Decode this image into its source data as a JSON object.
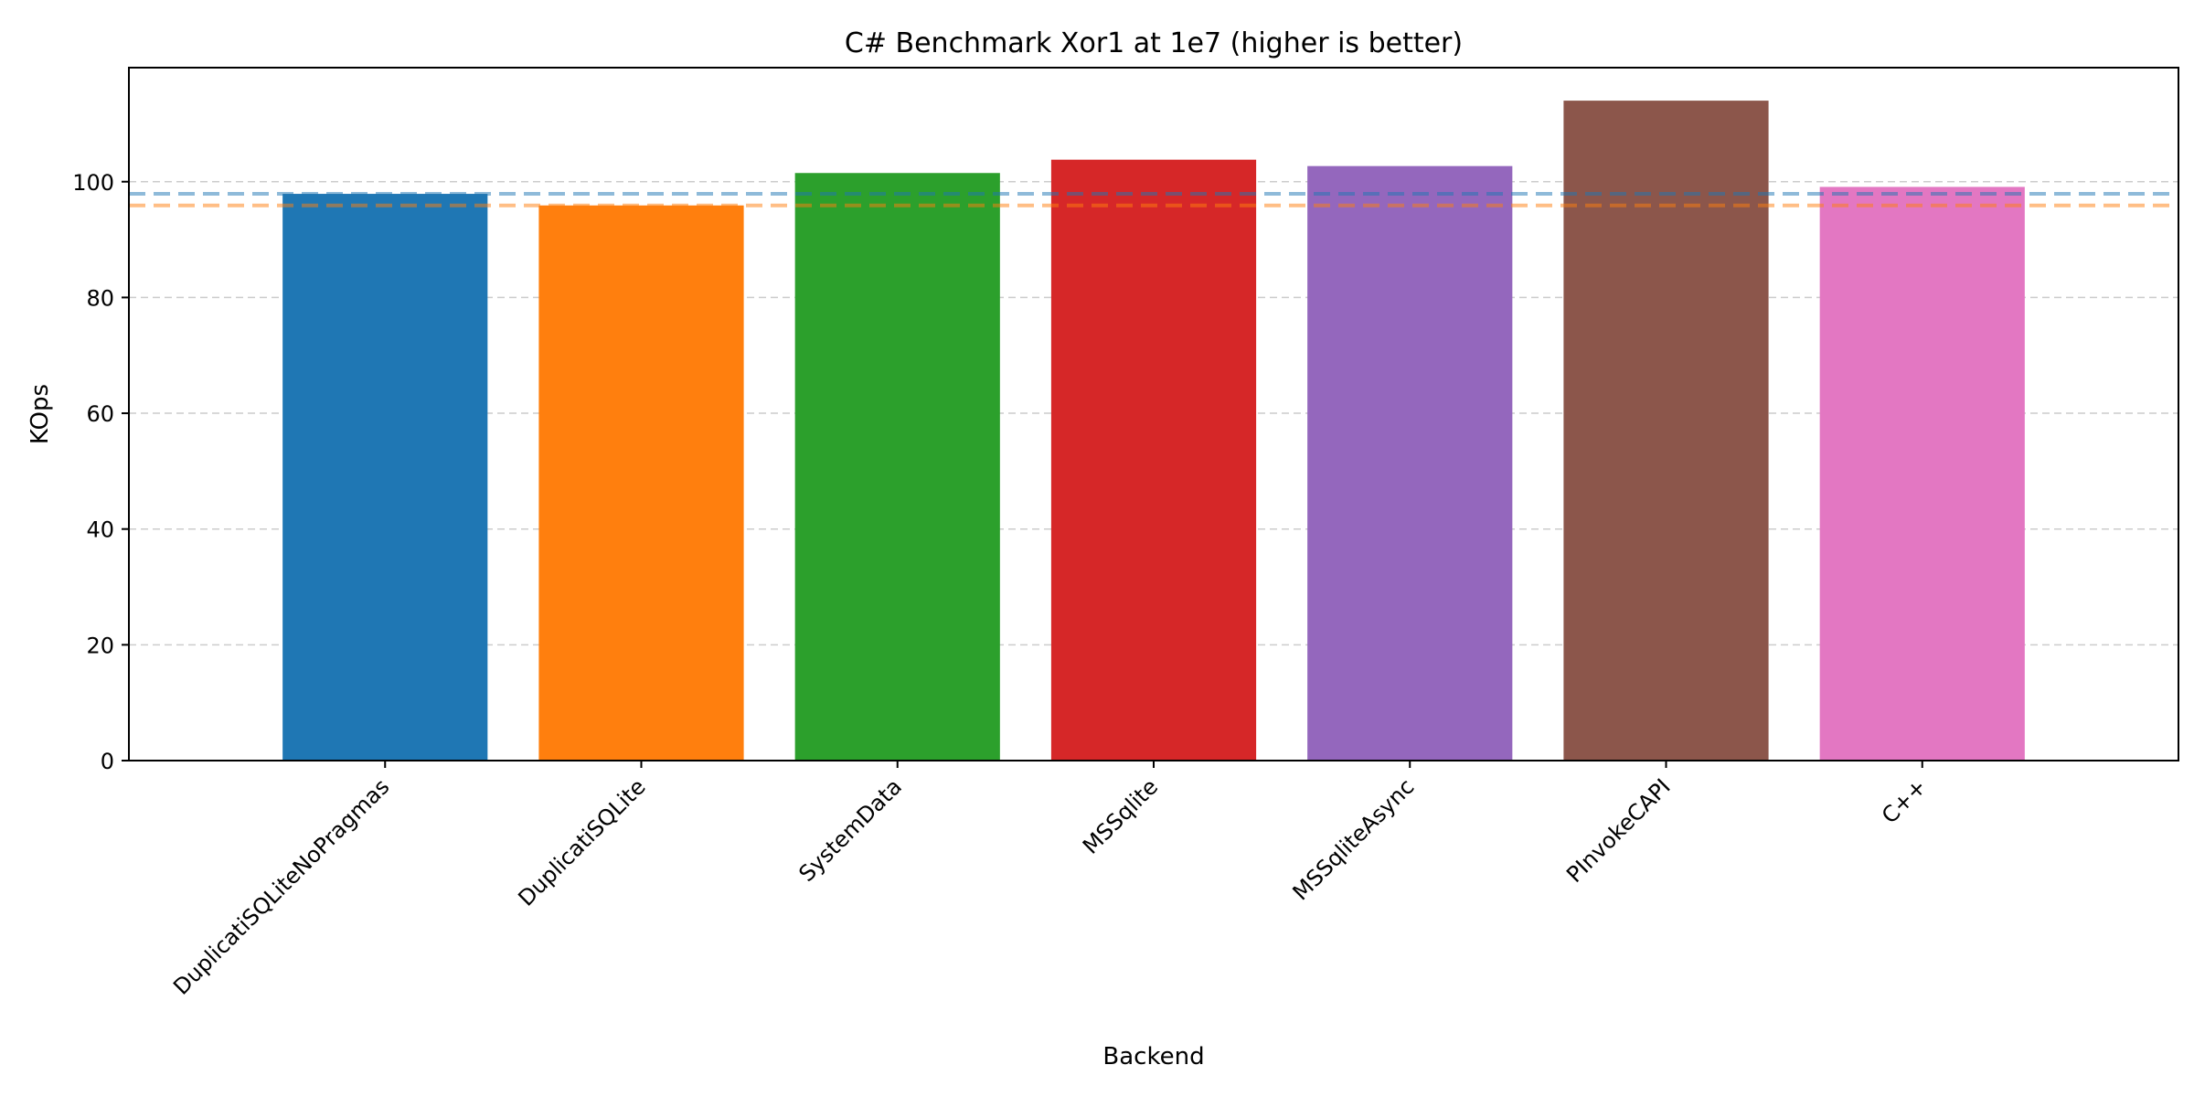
{
  "chart_data": {
    "type": "bar",
    "title": "C# Benchmark Xor1 at 1e7 (higher is better)",
    "xlabel": "Backend",
    "ylabel": "KOps",
    "categories": [
      "DuplicatiSQLiteNoPragmas",
      "DuplicatiSQLite",
      "SystemData",
      "MSSqlite",
      "MSSqliteAsync",
      "PInvokeCAPI",
      "C++"
    ],
    "values": [
      97.9,
      95.9,
      101.5,
      103.8,
      102.7,
      114.0,
      99.1
    ],
    "colors": [
      "#1f77b4",
      "#ff7f0e",
      "#2ca02c",
      "#d62728",
      "#9467bd",
      "#8c564b",
      "#e377c2"
    ],
    "ylim": [
      0,
      119.7
    ],
    "yticks": [
      0,
      20,
      40,
      60,
      80,
      100
    ],
    "grid": "y-dashed",
    "reference_lines": [
      {
        "value": 97.9,
        "color": "#1f77b4"
      },
      {
        "value": 95.9,
        "color": "#ff7f0e"
      }
    ]
  }
}
